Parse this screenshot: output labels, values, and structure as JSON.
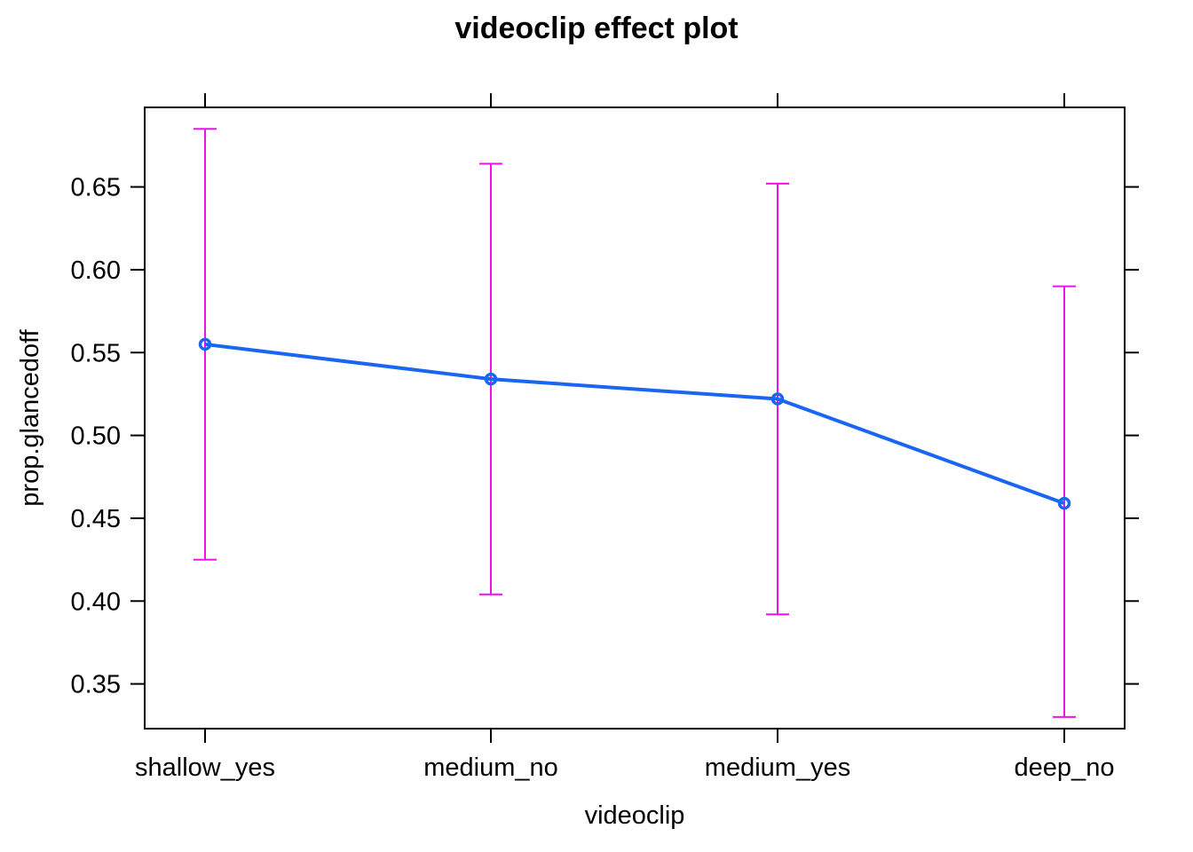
{
  "chart_data": {
    "type": "line",
    "title": "videoclip effect plot",
    "xlabel": "videoclip",
    "ylabel": "prop.glancedoff",
    "categories": [
      "shallow_yes",
      "medium_no",
      "medium_yes",
      "deep_no"
    ],
    "series": [
      {
        "values": [
          0.555,
          0.534,
          0.522,
          0.459
        ],
        "lower": [
          0.425,
          0.404,
          0.392,
          0.33
        ],
        "upper": [
          0.685,
          0.664,
          0.652,
          0.59
        ]
      }
    ],
    "ylim": [
      0.323,
      0.698
    ],
    "yticks": [
      "0.35",
      "0.40",
      "0.45",
      "0.50",
      "0.55",
      "0.60",
      "0.65"
    ],
    "grid": false,
    "legend": "none",
    "colors": {
      "line": "#1a66f2",
      "error_bar": "#ee11ee",
      "axis": "#000000"
    }
  }
}
